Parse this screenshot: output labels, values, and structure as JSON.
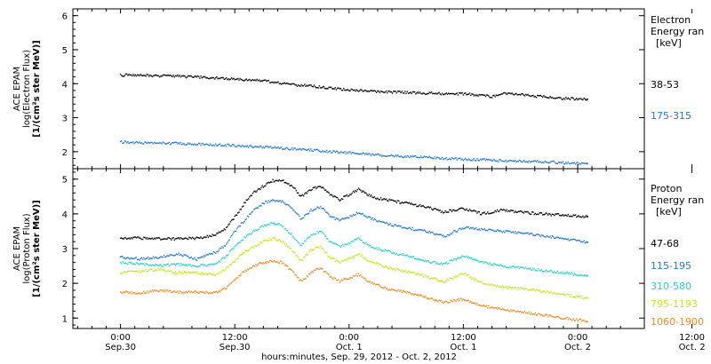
{
  "chart_data": [
    {
      "type": "scatter",
      "panel": "electron",
      "ylabel_lines": [
        "ACE EPAM",
        "log(Electron Flux)",
        "[1/(cm²s ster MeV)]"
      ],
      "ylim": [
        1.5,
        6.2
      ],
      "yticks": [
        "2",
        "3",
        "4",
        "5",
        "6"
      ],
      "legend_title": [
        "Electron",
        "Energy ran",
        "[keV]"
      ],
      "series": [
        {
          "name": "38-53",
          "color": "#000000",
          "x": [
            0,
            2,
            4,
            6,
            8,
            10,
            12,
            14,
            16,
            18,
            20,
            22,
            24,
            26,
            28,
            30,
            32,
            34,
            36,
            38,
            40,
            42,
            44,
            46,
            48,
            50,
            52,
            54,
            56,
            58,
            60,
            62,
            64,
            66,
            68,
            70,
            72,
            74,
            76,
            78,
            80,
            82,
            84,
            86,
            88,
            90,
            92,
            94,
            96,
            98
          ],
          "y": [
            4.25,
            4.25,
            4.24,
            4.24,
            4.23,
            4.23,
            4.22,
            4.2,
            4.2,
            4.18,
            4.17,
            4.15,
            4.13,
            4.12,
            4.1,
            4.08,
            4.05,
            4.0,
            3.97,
            3.95,
            3.93,
            3.9,
            3.87,
            3.85,
            3.82,
            3.8,
            3.78,
            3.76,
            3.75,
            3.75,
            3.74,
            3.73,
            3.72,
            3.72,
            3.7,
            3.7,
            3.7,
            3.68,
            3.66,
            3.62,
            3.7,
            3.72,
            3.68,
            3.65,
            3.62,
            3.6,
            3.58,
            3.56,
            3.55,
            3.54
          ]
        },
        {
          "name": "175-315",
          "color": "#1f78d6",
          "x": [
            0,
            4,
            8,
            12,
            16,
            20,
            24,
            28,
            32,
            36,
            40,
            44,
            48,
            52,
            56,
            60,
            64,
            68,
            72,
            76,
            80,
            84,
            88,
            92,
            96,
            98
          ],
          "y": [
            2.28,
            2.26,
            2.25,
            2.24,
            2.22,
            2.2,
            2.18,
            2.15,
            2.12,
            2.08,
            2.05,
            2.0,
            1.96,
            1.92,
            1.88,
            1.85,
            1.83,
            1.8,
            1.78,
            1.76,
            1.73,
            1.72,
            1.7,
            1.68,
            1.66,
            1.65
          ]
        }
      ]
    },
    {
      "type": "scatter",
      "panel": "proton",
      "ylabel_lines": [
        "ACE EPAM",
        "log(Proton Flux)",
        "[1/(cm²s ster MeV)]"
      ],
      "ylim": [
        0.7,
        5.3
      ],
      "yticks": [
        "1",
        "2",
        "3",
        "4",
        "5"
      ],
      "legend_title": [
        "Proton",
        "Energy ran",
        "[keV]"
      ],
      "series": [
        {
          "name": "47-68",
          "color": "#000000",
          "x": [
            0,
            4,
            8,
            12,
            16,
            20,
            22,
            24,
            26,
            28,
            30,
            32,
            34,
            36,
            38,
            40,
            42,
            44,
            46,
            48,
            50,
            52,
            54,
            56,
            58,
            60,
            64,
            68,
            72,
            76,
            80,
            84,
            88,
            92,
            96,
            98
          ],
          "y": [
            3.3,
            3.3,
            3.28,
            3.28,
            3.3,
            3.4,
            3.55,
            3.9,
            4.3,
            4.6,
            4.8,
            4.95,
            4.95,
            4.8,
            4.5,
            4.7,
            4.8,
            4.55,
            4.4,
            4.55,
            4.7,
            4.55,
            4.45,
            4.4,
            4.35,
            4.3,
            4.2,
            4.05,
            4.15,
            4.0,
            4.1,
            4.05,
            4.0,
            3.97,
            3.94,
            3.92
          ]
        },
        {
          "name": "115-195",
          "color": "#1f78d6",
          "x": [
            0,
            4,
            8,
            12,
            16,
            20,
            22,
            24,
            26,
            28,
            30,
            32,
            34,
            36,
            38,
            40,
            42,
            44,
            46,
            48,
            50,
            52,
            54,
            56,
            58,
            60,
            64,
            68,
            72,
            76,
            80,
            84,
            88,
            92,
            96,
            98
          ],
          "y": [
            2.75,
            2.7,
            2.75,
            2.85,
            2.7,
            2.9,
            3.1,
            3.5,
            3.8,
            4.1,
            4.3,
            4.4,
            4.35,
            4.15,
            3.85,
            4.1,
            4.2,
            3.95,
            3.8,
            3.9,
            4.05,
            3.9,
            3.8,
            3.72,
            3.65,
            3.6,
            3.5,
            3.35,
            3.6,
            3.55,
            3.5,
            3.45,
            3.38,
            3.3,
            3.22,
            3.18
          ]
        },
        {
          "name": "310-580",
          "color": "#22d4c8",
          "x": [
            0,
            4,
            8,
            12,
            16,
            20,
            22,
            24,
            26,
            28,
            30,
            32,
            34,
            36,
            38,
            40,
            42,
            44,
            46,
            48,
            50,
            52,
            54,
            56,
            58,
            60,
            64,
            68,
            72,
            76,
            80,
            84,
            88,
            92,
            96,
            98
          ],
          "y": [
            2.6,
            2.55,
            2.5,
            2.55,
            2.5,
            2.55,
            2.75,
            3.05,
            3.3,
            3.5,
            3.65,
            3.75,
            3.65,
            3.4,
            3.1,
            3.4,
            3.5,
            3.2,
            3.05,
            3.15,
            3.3,
            3.1,
            3.0,
            2.92,
            2.85,
            2.8,
            2.65,
            2.55,
            2.8,
            2.6,
            2.5,
            2.45,
            2.38,
            2.32,
            2.25,
            2.22
          ]
        },
        {
          "name": "795-1193",
          "color": "#c8e619",
          "x": [
            0,
            4,
            8,
            12,
            16,
            20,
            22,
            24,
            26,
            28,
            30,
            32,
            34,
            36,
            38,
            40,
            42,
            44,
            46,
            48,
            50,
            52,
            54,
            56,
            58,
            60,
            64,
            68,
            72,
            76,
            80,
            84,
            88,
            92,
            96,
            98
          ],
          "y": [
            2.3,
            2.35,
            2.4,
            2.3,
            2.3,
            2.25,
            2.4,
            2.65,
            2.9,
            3.05,
            3.2,
            3.3,
            3.2,
            2.95,
            2.65,
            2.95,
            3.05,
            2.75,
            2.6,
            2.7,
            2.85,
            2.65,
            2.55,
            2.45,
            2.4,
            2.35,
            2.2,
            2.05,
            2.3,
            2.0,
            1.9,
            1.85,
            1.78,
            1.7,
            1.62,
            1.58
          ]
        },
        {
          "name": "1060-1900",
          "color": "#f28a1e",
          "x": [
            0,
            4,
            8,
            12,
            16,
            20,
            22,
            24,
            26,
            28,
            30,
            32,
            34,
            36,
            38,
            40,
            42,
            44,
            46,
            48,
            50,
            52,
            54,
            56,
            58,
            60,
            64,
            68,
            72,
            76,
            80,
            84,
            88,
            92,
            96,
            98
          ],
          "y": [
            1.75,
            1.72,
            1.8,
            1.75,
            1.75,
            1.72,
            1.85,
            2.1,
            2.35,
            2.5,
            2.6,
            2.65,
            2.6,
            2.35,
            2.05,
            2.3,
            2.45,
            2.2,
            2.05,
            2.15,
            2.25,
            2.05,
            1.95,
            1.85,
            1.8,
            1.75,
            1.6,
            1.45,
            1.55,
            1.35,
            1.25,
            1.18,
            1.1,
            1.02,
            0.95,
            0.9
          ]
        }
      ]
    }
  ],
  "xaxis": {
    "range_hours": [
      -10,
      110
    ],
    "ticks": [
      {
        "h": 0,
        "time": "0:00",
        "date": "Sep.30"
      },
      {
        "h": 24,
        "time": "12:00",
        "date": "Sep.30"
      },
      {
        "h": 48,
        "time": "0:00",
        "date": "Oct. 1"
      },
      {
        "h": 72,
        "time": "12:00",
        "date": "Oct. 1"
      },
      {
        "h": 96,
        "time": "0:00",
        "date": "Oct. 2"
      },
      {
        "h": 120,
        "time": "12:00",
        "date": "Oct. 2"
      }
    ],
    "label": "hours:minutes, Sep. 29, 2012 - Oct. 2, 2012"
  }
}
